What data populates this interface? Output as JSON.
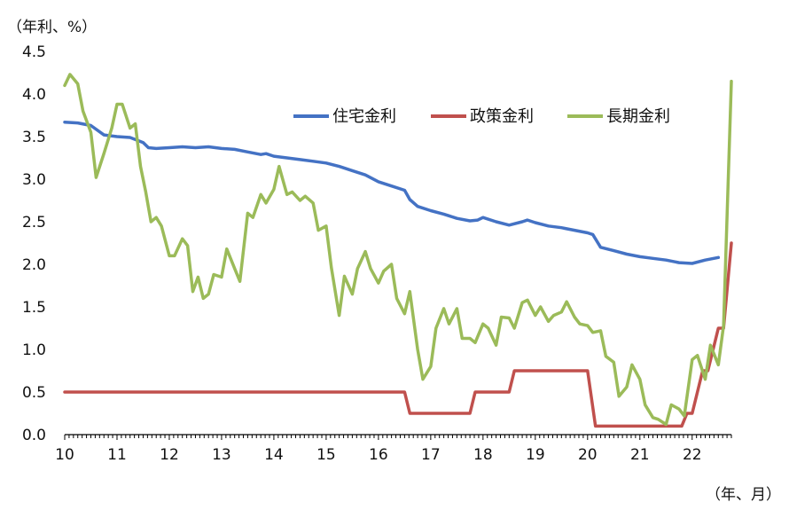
{
  "chart_data": {
    "type": "line",
    "title": "",
    "y_unit_label": "（年利、%）",
    "x_unit_label": "（年、月）",
    "ylim": [
      0.0,
      4.5
    ],
    "yticks": [
      "0.0",
      "0.5",
      "1.0",
      "1.5",
      "2.0",
      "2.5",
      "3.0",
      "3.5",
      "4.0",
      "4.5"
    ],
    "xlim": [
      10.0,
      22.75
    ],
    "xticks": [
      "10",
      "11",
      "12",
      "13",
      "14",
      "15",
      "16",
      "17",
      "18",
      "19",
      "20",
      "21",
      "22"
    ],
    "grid": false,
    "legend_position": "top-right",
    "series": [
      {
        "name": "住宅金利",
        "color": "#4472C4",
        "x": [
          10.0,
          10.25,
          10.5,
          10.75,
          11.0,
          11.25,
          11.5,
          11.6,
          11.75,
          12.0,
          12.25,
          12.5,
          12.75,
          13.0,
          13.25,
          13.5,
          13.75,
          13.85,
          14.0,
          14.25,
          14.5,
          14.75,
          15.0,
          15.25,
          15.5,
          15.75,
          16.0,
          16.25,
          16.5,
          16.6,
          16.75,
          17.0,
          17.25,
          17.5,
          17.75,
          17.9,
          18.0,
          18.25,
          18.5,
          18.75,
          18.85,
          19.0,
          19.25,
          19.5,
          19.75,
          20.0,
          20.1,
          20.25,
          20.5,
          20.75,
          21.0,
          21.25,
          21.5,
          21.75,
          22.0,
          22.25,
          22.5
        ],
        "y": [
          3.67,
          3.66,
          3.63,
          3.52,
          3.5,
          3.49,
          3.43,
          3.37,
          3.36,
          3.37,
          3.38,
          3.37,
          3.38,
          3.36,
          3.35,
          3.32,
          3.29,
          3.3,
          3.27,
          3.25,
          3.23,
          3.21,
          3.19,
          3.15,
          3.1,
          3.05,
          2.97,
          2.92,
          2.87,
          2.76,
          2.68,
          2.63,
          2.59,
          2.54,
          2.51,
          2.52,
          2.55,
          2.5,
          2.46,
          2.5,
          2.52,
          2.49,
          2.45,
          2.43,
          2.4,
          2.37,
          2.35,
          2.2,
          2.16,
          2.12,
          2.09,
          2.07,
          2.05,
          2.02,
          2.01,
          2.05,
          2.08
        ]
      },
      {
        "name": "政策金利",
        "color": "#C0504D",
        "x": [
          10.0,
          16.5,
          16.6,
          17.75,
          17.85,
          18.5,
          18.6,
          20.0,
          20.15,
          20.5,
          21.0,
          21.5,
          21.8,
          21.9,
          22.0,
          22.1,
          22.2,
          22.3,
          22.4,
          22.5,
          22.6,
          22.75
        ],
        "y": [
          0.5,
          0.5,
          0.25,
          0.25,
          0.5,
          0.5,
          0.75,
          0.75,
          0.1,
          0.1,
          0.1,
          0.1,
          0.1,
          0.25,
          0.25,
          0.5,
          0.75,
          0.75,
          1.0,
          1.25,
          1.25,
          2.25
        ]
      },
      {
        "name": "長期金利",
        "color": "#9BBB59",
        "x": [
          10.0,
          10.1,
          10.25,
          10.35,
          10.5,
          10.6,
          10.75,
          10.9,
          11.0,
          11.1,
          11.25,
          11.35,
          11.45,
          11.55,
          11.65,
          11.75,
          11.85,
          12.0,
          12.1,
          12.25,
          12.35,
          12.45,
          12.55,
          12.65,
          12.75,
          12.85,
          13.0,
          13.1,
          13.25,
          13.35,
          13.5,
          13.6,
          13.75,
          13.85,
          14.0,
          14.1,
          14.25,
          14.35,
          14.5,
          14.6,
          14.75,
          14.85,
          15.0,
          15.1,
          15.25,
          15.35,
          15.5,
          15.6,
          15.75,
          15.85,
          16.0,
          16.1,
          16.25,
          16.35,
          16.5,
          16.6,
          16.75,
          16.85,
          17.0,
          17.1,
          17.25,
          17.35,
          17.5,
          17.6,
          17.75,
          17.85,
          18.0,
          18.1,
          18.25,
          18.35,
          18.5,
          18.6,
          18.75,
          18.85,
          19.0,
          19.1,
          19.25,
          19.35,
          19.5,
          19.6,
          19.75,
          19.85,
          20.0,
          20.1,
          20.25,
          20.35,
          20.5,
          20.6,
          20.75,
          20.85,
          21.0,
          21.1,
          21.25,
          21.35,
          21.5,
          21.6,
          21.75,
          21.85,
          22.0,
          22.1,
          22.25,
          22.35,
          22.5,
          22.6,
          22.75
        ],
        "y": [
          4.1,
          4.23,
          4.12,
          3.8,
          3.55,
          3.02,
          3.3,
          3.6,
          3.88,
          3.88,
          3.6,
          3.65,
          3.15,
          2.85,
          2.5,
          2.55,
          2.45,
          2.1,
          2.1,
          2.3,
          2.22,
          1.68,
          1.85,
          1.6,
          1.65,
          1.88,
          1.85,
          2.18,
          1.95,
          1.8,
          2.6,
          2.55,
          2.82,
          2.72,
          2.88,
          3.15,
          2.82,
          2.85,
          2.75,
          2.8,
          2.72,
          2.4,
          2.45,
          1.96,
          1.4,
          1.86,
          1.65,
          1.95,
          2.15,
          1.95,
          1.78,
          1.92,
          2.0,
          1.6,
          1.42,
          1.68,
          1.0,
          0.65,
          0.8,
          1.25,
          1.48,
          1.3,
          1.48,
          1.13,
          1.13,
          1.08,
          1.3,
          1.25,
          1.05,
          1.38,
          1.37,
          1.25,
          1.55,
          1.58,
          1.4,
          1.5,
          1.33,
          1.4,
          1.44,
          1.56,
          1.38,
          1.3,
          1.28,
          1.2,
          1.22,
          0.92,
          0.85,
          0.45,
          0.56,
          0.82,
          0.65,
          0.35,
          0.2,
          0.18,
          0.12,
          0.35,
          0.3,
          0.22,
          0.88,
          0.93,
          0.65,
          1.05,
          0.82,
          1.28,
          4.15
        ]
      }
    ]
  }
}
